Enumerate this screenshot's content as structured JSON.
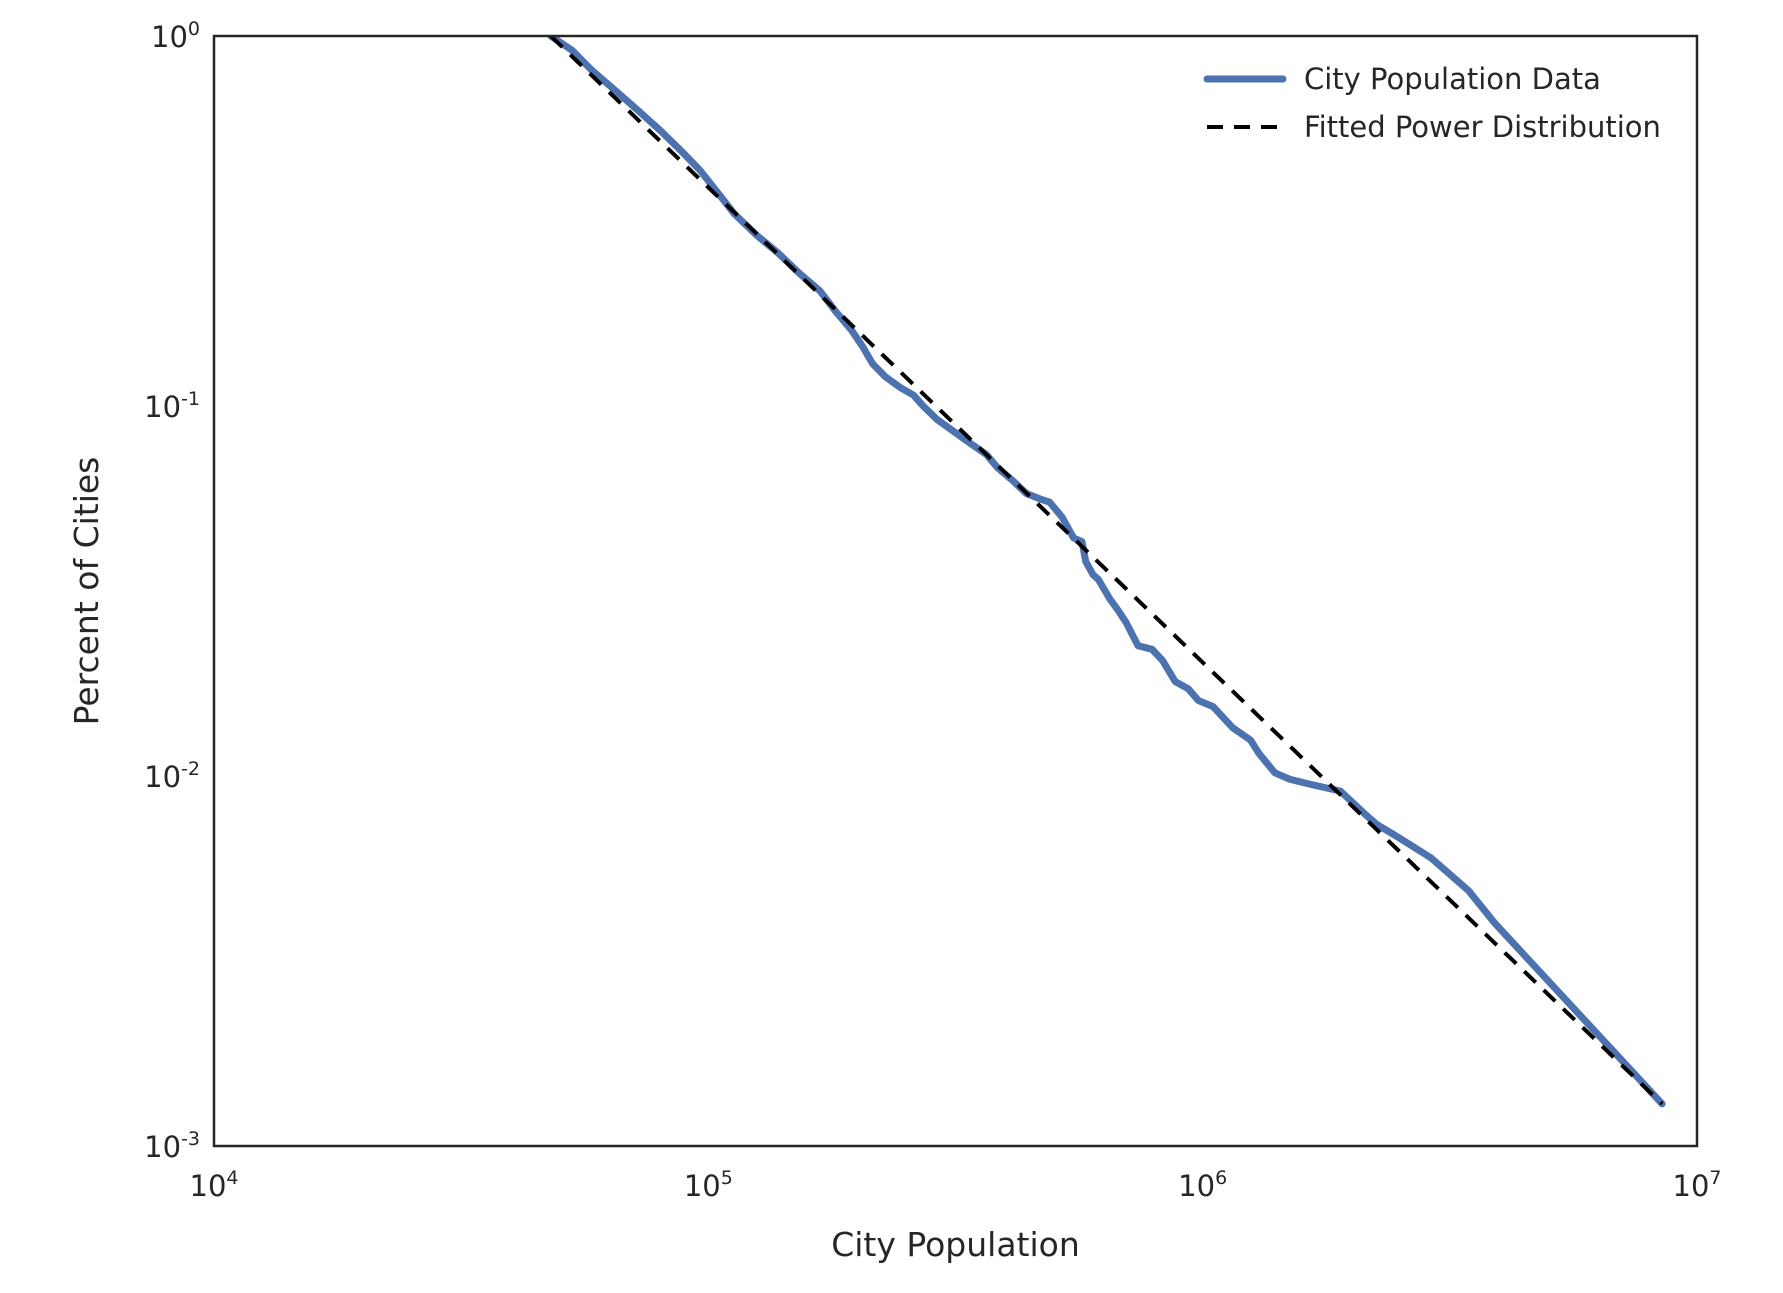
{
  "chart_data": {
    "type": "line",
    "title": "",
    "xlabel": "City Population",
    "ylabel": "Percent of Cities",
    "xscale": "log",
    "yscale": "log",
    "xlim": [
      10000,
      10000000
    ],
    "ylim": [
      0.001,
      1
    ],
    "grid": false,
    "legend_position": "top-right",
    "x_ticks": [
      {
        "base": "10",
        "exp": "4",
        "value": 10000
      },
      {
        "base": "10",
        "exp": "5",
        "value": 100000
      },
      {
        "base": "10",
        "exp": "6",
        "value": 1000000
      },
      {
        "base": "10",
        "exp": "7",
        "value": 10000000
      }
    ],
    "y_ticks": [
      {
        "base": "10",
        "exp": "0",
        "value": 1
      },
      {
        "base": "10",
        "exp": "-1",
        "value": 0.1
      },
      {
        "base": "10",
        "exp": "-2",
        "value": 0.01
      },
      {
        "base": "10",
        "exp": "-3",
        "value": 0.001
      }
    ],
    "series": [
      {
        "name": "City Population Data",
        "color": "#4c72b0",
        "style": "solid",
        "x": [
          48000,
          53000,
          58000,
          65000,
          72000,
          80000,
          88000,
          96000,
          104000,
          113000,
          125000,
          138000,
          153000,
          168000,
          181000,
          195000,
          205000,
          215000,
          228000,
          245000,
          260000,
          272000,
          290000,
          315000,
          340000,
          365000,
          385000,
          412000,
          440000,
          470000,
          490000,
          520000,
          548000,
          570000,
          580000,
          600000,
          615000,
          650000,
          675000,
          700000,
          740000,
          790000,
          830000,
          880000,
          935000,
          980000,
          1050000,
          1150000,
          1250000,
          1300000,
          1400000,
          1500000,
          1650000,
          1900000,
          2150000,
          2250000,
          2500000,
          2900000,
          3450000,
          3900000,
          8500000
        ],
        "y": [
          1.0,
          0.915,
          0.81,
          0.71,
          0.63,
          0.555,
          0.49,
          0.435,
          0.38,
          0.33,
          0.29,
          0.26,
          0.228,
          0.205,
          0.18,
          0.16,
          0.145,
          0.13,
          0.12,
          0.112,
          0.107,
          0.1,
          0.092,
          0.085,
          0.079,
          0.074,
          0.068,
          0.063,
          0.058,
          0.056,
          0.055,
          0.05,
          0.044,
          0.043,
          0.038,
          0.035,
          0.034,
          0.03,
          0.028,
          0.026,
          0.0225,
          0.022,
          0.0205,
          0.018,
          0.0172,
          0.016,
          0.0154,
          0.0135,
          0.0125,
          0.0115,
          0.0102,
          0.0098,
          0.0095,
          0.0091,
          0.0078,
          0.0074,
          0.0068,
          0.006,
          0.0049,
          0.004,
          0.0013
        ]
      },
      {
        "name": "Fitted Power Distribution",
        "color": "#000000",
        "style": "dashed",
        "x": [
          48000,
          8500000
        ],
        "y": [
          1.0,
          0.0013
        ]
      }
    ]
  }
}
